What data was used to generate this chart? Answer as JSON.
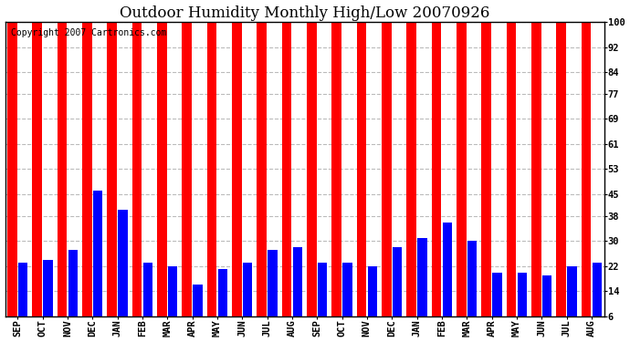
{
  "title": "Outdoor Humidity Monthly High/Low 20070926",
  "copyright_text": "Copyright 2007 Cartronics.com",
  "categories": [
    "SEP",
    "OCT",
    "NOV",
    "DEC",
    "JAN",
    "FEB",
    "MAR",
    "APR",
    "MAY",
    "JUN",
    "JUL",
    "AUG",
    "SEP",
    "OCT",
    "NOV",
    "DEC",
    "JAN",
    "FEB",
    "MAR",
    "APR",
    "MAY",
    "JUN",
    "JUL",
    "AUG"
  ],
  "high_values": [
    100,
    100,
    100,
    100,
    100,
    100,
    100,
    100,
    100,
    100,
    100,
    100,
    100,
    100,
    100,
    100,
    100,
    100,
    100,
    100,
    100,
    100,
    100,
    100
  ],
  "low_values": [
    23,
    24,
    27,
    46,
    40,
    23,
    22,
    16,
    21,
    23,
    27,
    28,
    23,
    23,
    22,
    28,
    31,
    36,
    30,
    20,
    20,
    19,
    22,
    23
  ],
  "high_color": "#ff0000",
  "low_color": "#0000ff",
  "bg_color": "#ffffff",
  "plot_bg_color": "#ffffff",
  "grid_color": "#bbbbbb",
  "ylim": [
    6,
    100
  ],
  "yticks": [
    6,
    14,
    22,
    30,
    38,
    45,
    53,
    61,
    69,
    77,
    84,
    92,
    100
  ],
  "title_fontsize": 12,
  "tick_fontsize": 7.5,
  "copyright_fontsize": 7
}
